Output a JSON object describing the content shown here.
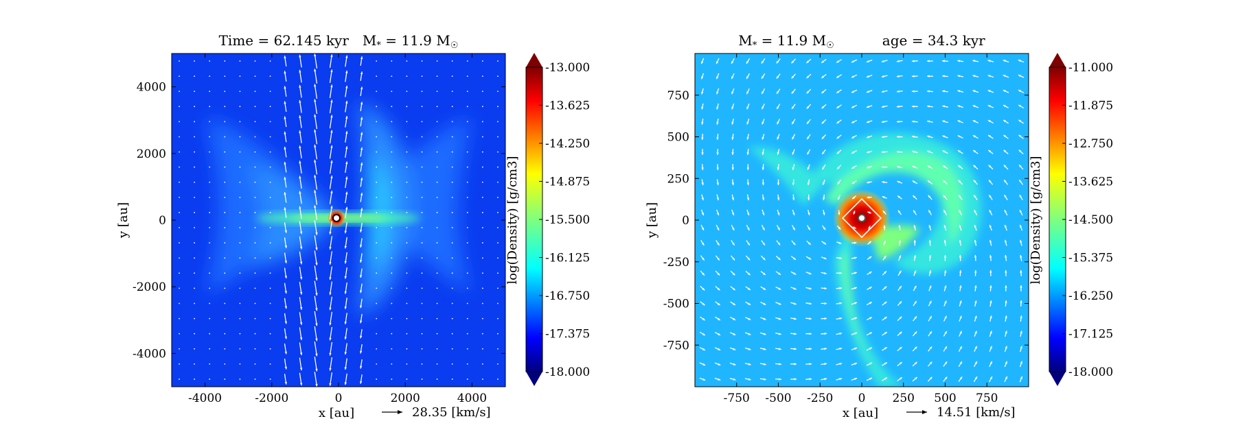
{
  "chart_data": [
    {
      "type": "heatmap",
      "title": "Time = 62.145 kyr    M$_*$ = 11.9 M$_\\odot$",
      "title_main": "Time = 62.145 kyr",
      "title_mass": "M",
      "title_mass_sub": "*",
      "title_mass_rest": " = 11.9 M",
      "title_mass_sun": "☉",
      "xlabel": "x [au]",
      "ylabel": "y [au]",
      "xlim": [
        -5000,
        5000
      ],
      "ylim": [
        -5000,
        5000
      ],
      "xticks": [
        -4000,
        -2000,
        0,
        2000,
        4000
      ],
      "xticklabels": [
        "-4000",
        "-2000",
        "0",
        "2000",
        "4000"
      ],
      "yticks": [
        -4000,
        -2000,
        0,
        2000,
        4000
      ],
      "yticklabels": [
        "-4000",
        "-2000",
        "0",
        "2000",
        "4000"
      ],
      "colorbar": {
        "label": "log(Density) [g/cm3]",
        "range": [
          -18.0,
          -13.0
        ],
        "ticks": [
          -13.0,
          -13.625,
          -14.25,
          -14.875,
          -15.5,
          -16.125,
          -16.75,
          -17.375,
          -18.0
        ],
        "ticklabels": [
          "-13.000",
          "-13.625",
          "-14.250",
          "-14.875",
          "-15.500",
          "-16.125",
          "-16.750",
          "-17.375",
          "-18.000"
        ],
        "colormap": "jet"
      },
      "density_field": {
        "background": -17.3,
        "features": [
          {
            "kind": "outflow-cavity-edges",
            "level": -16.4
          },
          {
            "kind": "disk-midplane",
            "level": -15.6,
            "extent_x": [
              -2500,
              2500
            ]
          },
          {
            "kind": "central-core",
            "level": -13.2,
            "radius": 150
          }
        ]
      },
      "vector_key": {
        "value": "28.35",
        "unit": "[km/s]",
        "label": "28.35 [km/s]"
      },
      "vector_field": "bipolar outflow along the y axis (strong arrows near x ≈ -1600..+200), weak elsewhere",
      "sink": {
        "x": 0,
        "y": 0
      }
    },
    {
      "type": "heatmap",
      "title": "M$_*$ = 11.9 M$_\\odot$    age = 34.3 kyr",
      "title_mass": "M",
      "title_mass_sub": "*",
      "title_mass_rest": " = 11.9 M",
      "title_mass_sun": "☉",
      "title_age": "age = 34.3 kyr",
      "xlabel": "x [au]",
      "ylabel": "y [au]",
      "xlim": [
        -1000,
        1000
      ],
      "ylim": [
        -1000,
        1000
      ],
      "xticks": [
        -750,
        -500,
        -250,
        0,
        250,
        500,
        750
      ],
      "xticklabels": [
        "-750",
        "-500",
        "-250",
        "0",
        "250",
        "500",
        "750"
      ],
      "yticks": [
        750,
        500,
        250,
        0,
        -250,
        -500,
        -750
      ],
      "yticklabels": [
        "750",
        "500",
        "250",
        "0",
        "-250",
        "-500",
        "-750"
      ],
      "colorbar": {
        "label": "log(Density) [g/cm3]",
        "range": [
          -18.0,
          -11.0
        ],
        "ticks": [
          -11.0,
          -11.875,
          -12.75,
          -13.625,
          -14.5,
          -15.375,
          -16.25,
          -17.125,
          -18.0
        ],
        "ticklabels": [
          "-11.000",
          "-11.875",
          "-12.750",
          "-13.625",
          "-14.500",
          "-15.375",
          "-16.250",
          "-17.125",
          "-18.000"
        ],
        "colormap": "jet"
      },
      "density_field": {
        "background": -15.6,
        "features": [
          {
            "kind": "spiral-arms",
            "level": -14.6
          },
          {
            "kind": "inner-disk",
            "level": -12.0,
            "radius": 120
          },
          {
            "kind": "central-core",
            "level": -11.2,
            "radius": 50
          }
        ]
      },
      "vector_key": {
        "value": "14.51",
        "unit": "[km/s]",
        "label": "14.51 [km/s]"
      },
      "vector_field": "rotating infall: arrows circulate around the center",
      "sink": {
        "x": 0,
        "y": 0
      }
    }
  ]
}
